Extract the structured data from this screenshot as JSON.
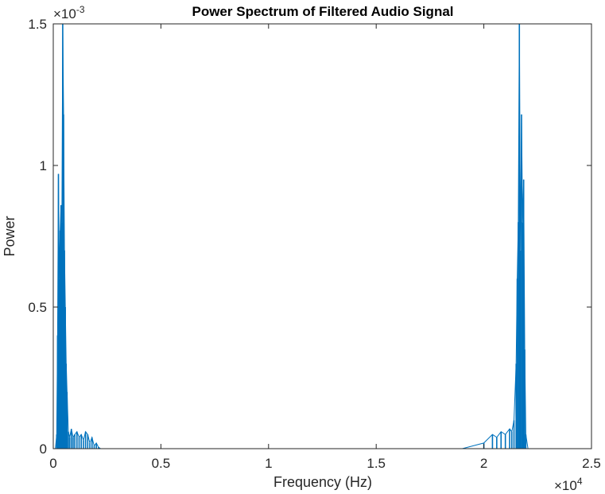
{
  "chart_data": {
    "type": "line",
    "title": "Power Spectrum of Filtered Audio Signal",
    "xlabel": "Frequency (Hz)",
    "ylabel": "Power",
    "xlim": [
      0,
      25000
    ],
    "ylim": [
      0,
      0.0015
    ],
    "x_ticks": [
      0,
      5000,
      10000,
      15000,
      20000,
      25000
    ],
    "x_tick_labels": [
      "0",
      "0.5",
      "1",
      "1.5",
      "2",
      "2.5"
    ],
    "y_ticks": [
      0,
      0.0005,
      0.001,
      0.0015
    ],
    "y_tick_labels": [
      "0",
      "0.5",
      "1",
      "1.5"
    ],
    "x_exponent": {
      "base": "×10",
      "power": "4"
    },
    "y_exponent": {
      "base": "×10",
      "power": "-3"
    },
    "grid": false,
    "box": true,
    "line_color": "#0072BD",
    "series": [
      {
        "x": [
          100,
          160,
          200,
          240,
          280,
          320,
          360,
          400,
          440,
          480,
          520,
          560,
          600,
          640,
          700,
          760,
          840,
          920,
          1000,
          1100,
          1200,
          1300,
          1400,
          1500,
          1600,
          1700,
          1800,
          1900,
          2000,
          2100,
          2200,
          2400,
          3000,
          5000,
          10000,
          15000,
          19000,
          20000,
          20400,
          20600,
          20800,
          21000,
          21200,
          21300,
          21400,
          21500,
          21550,
          21600,
          21650,
          21700,
          21750,
          21800,
          21850,
          21900,
          21950,
          22050,
          22500,
          25000
        ],
        "y": [
          0.0,
          5e-05,
          0.0004,
          0.00097,
          0.0006,
          0.00077,
          0.00086,
          0.0008,
          0.0015,
          0.00118,
          0.0007,
          0.0005,
          0.0003,
          0.0002,
          6e-05,
          4e-05,
          7e-05,
          4e-05,
          5e-05,
          6e-05,
          4e-05,
          5e-05,
          3e-05,
          6e-05,
          5e-05,
          2e-05,
          4e-05,
          1e-05,
          2e-05,
          5e-06,
          0.0,
          0.0,
          0.0,
          0.0,
          0.0,
          0.0,
          0.0,
          2e-05,
          5e-05,
          4e-05,
          6e-05,
          5e-05,
          7e-05,
          6e-05,
          0.0001,
          0.0003,
          0.0006,
          0.0008,
          0.0015,
          0.0007,
          0.00118,
          0.0008,
          0.00095,
          0.00035,
          5e-05,
          0.0,
          0.0,
          0.0
        ]
      }
    ]
  }
}
